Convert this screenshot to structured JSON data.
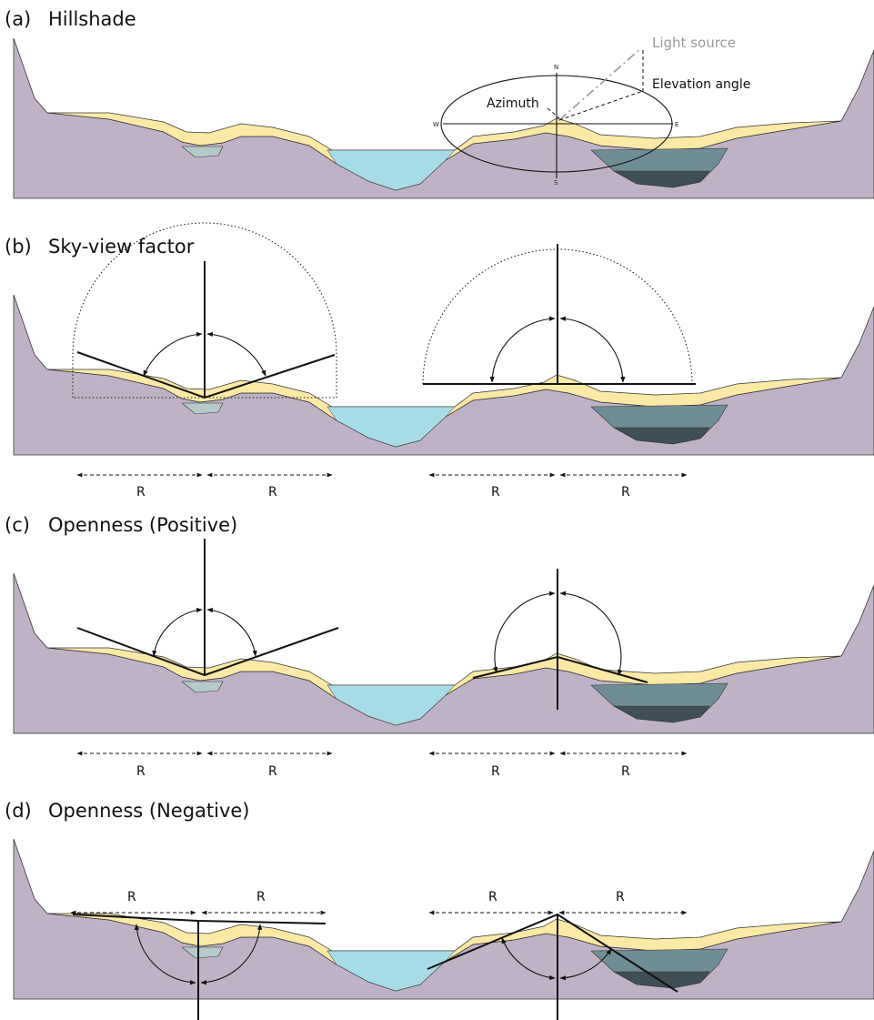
{
  "panels": [
    {
      "label": "(a)",
      "title": "Hillshade",
      "light_source": "Light source",
      "elevation_angle": "Elevation angle",
      "azimuth": "Azimuth",
      "compass": [
        "N",
        "S",
        "W",
        "E"
      ]
    },
    {
      "label": "(b)",
      "title": "Sky-view factor",
      "radii": [
        "R",
        "R",
        "R",
        "R"
      ]
    },
    {
      "label": "(c)",
      "title": "Openness (Positive)",
      "radii": [
        "R",
        "R",
        "R",
        "R"
      ]
    },
    {
      "label": "(d)",
      "title": "Openness (Negative)",
      "radii": [
        "R",
        "R",
        "R",
        "R"
      ]
    }
  ]
}
